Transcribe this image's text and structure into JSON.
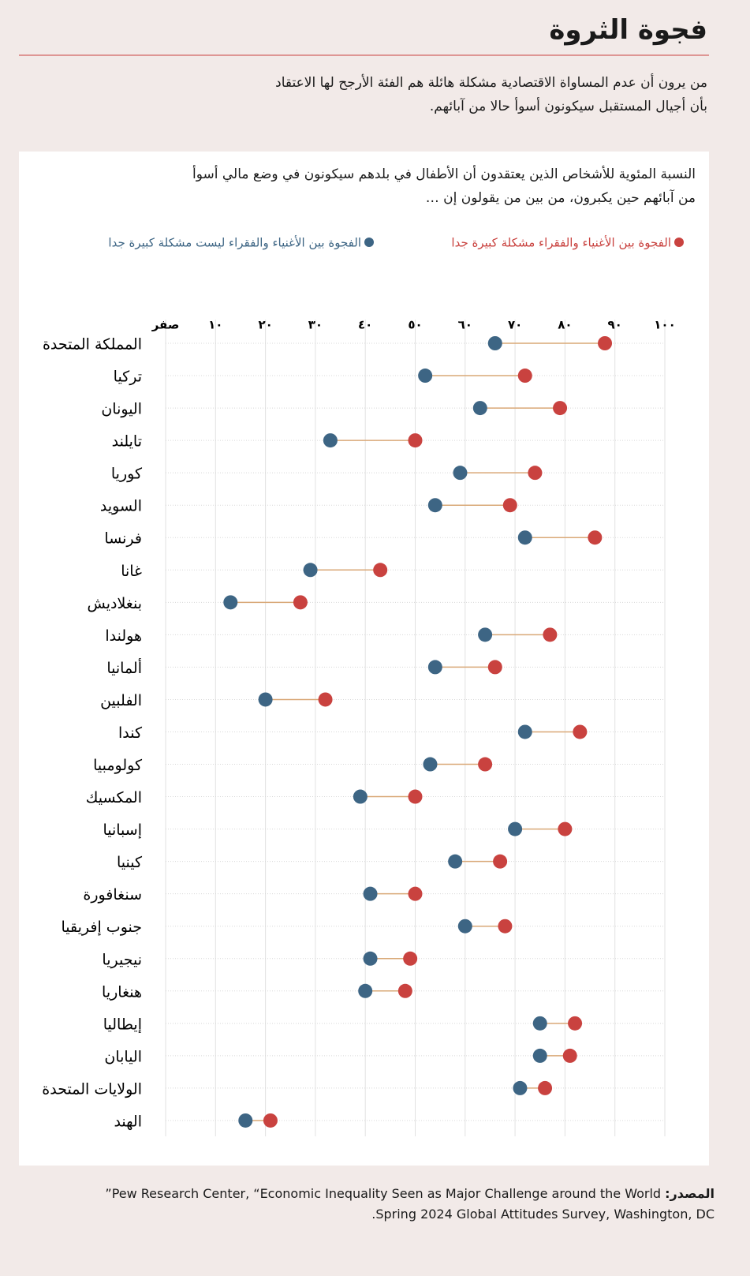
{
  "chart_data": {
    "type": "dumbbell",
    "title": "فجوة الثروة",
    "subtitle": [
      "من يرون أن عدم المساواة الاقتصادية مشكلة هائلة هم الفئة الأرجح لها الاعتقاد",
      "بأن أجيال المستقبل سيكونون أسوأ حالا من آبائهم."
    ],
    "chart_subtitle": [
      "النسبة المئوية للأشخاص الذين يعتقدون أن الأطفال في بلدهم سيكونون في وضع مالي أسوأ",
      "من آبائهم حين يكبرون، من بين من يقولون إن …"
    ],
    "categories": [
      "المملكة المتحدة",
      "تركيا",
      "اليونان",
      "تايلند",
      "كوريا",
      "السويد",
      "فرنسا",
      "غانا",
      "بنغلاديش",
      "هولندا",
      "ألمانيا",
      "الفلبين",
      "كندا",
      "كولومبيا",
      "المكسيك",
      "إسبانيا",
      "كينيا",
      "سنغافورة",
      "جنوب إفريقيا",
      "نيجيريا",
      "هنغاريا",
      "إيطاليا",
      "اليابان",
      "الولايات المتحدة",
      "الهند"
    ],
    "series": [
      {
        "name": "الفجوة بين الأغنياء والفقراء مشكلة كبيرة جدا",
        "color": "#c9423f",
        "values": [
          88,
          72,
          79,
          50,
          74,
          69,
          86,
          43,
          27,
          77,
          66,
          32,
          83,
          64,
          50,
          80,
          67,
          50,
          68,
          49,
          48,
          82,
          81,
          76,
          21
        ]
      },
      {
        "name": "الفجوة بين الأغنياء والفقراء ليست مشكلة كبيرة جدا",
        "color": "#3d6584",
        "values": [
          66,
          52,
          63,
          33,
          59,
          54,
          72,
          29,
          13,
          64,
          54,
          20,
          72,
          53,
          39,
          70,
          58,
          41,
          60,
          41,
          40,
          75,
          75,
          71,
          16
        ]
      }
    ],
    "connector_color": "#d9a877",
    "xlim": [
      0,
      100
    ],
    "xticks": [
      {
        "value": 0,
        "label": "صفر"
      },
      {
        "value": 10,
        "label": "١٠"
      },
      {
        "value": 20,
        "label": "٢٠"
      },
      {
        "value": 30,
        "label": "٣٠"
      },
      {
        "value": 40,
        "label": "٤٠"
      },
      {
        "value": 50,
        "label": "٥٠"
      },
      {
        "value": 60,
        "label": "٦٠"
      },
      {
        "value": 70,
        "label": "٧٠"
      },
      {
        "value": 80,
        "label": "٨٠"
      },
      {
        "value": 90,
        "label": "٩٠"
      },
      {
        "value": 100,
        "label": "١٠٠"
      }
    ],
    "grid": true,
    "source_label": "المصدر:",
    "source": [
      "Pew Research Center, “Economic Inequality Seen as Major Challenge around the World”",
      "Spring 2024 Global Attitudes Survey, Washington, DC."
    ]
  }
}
